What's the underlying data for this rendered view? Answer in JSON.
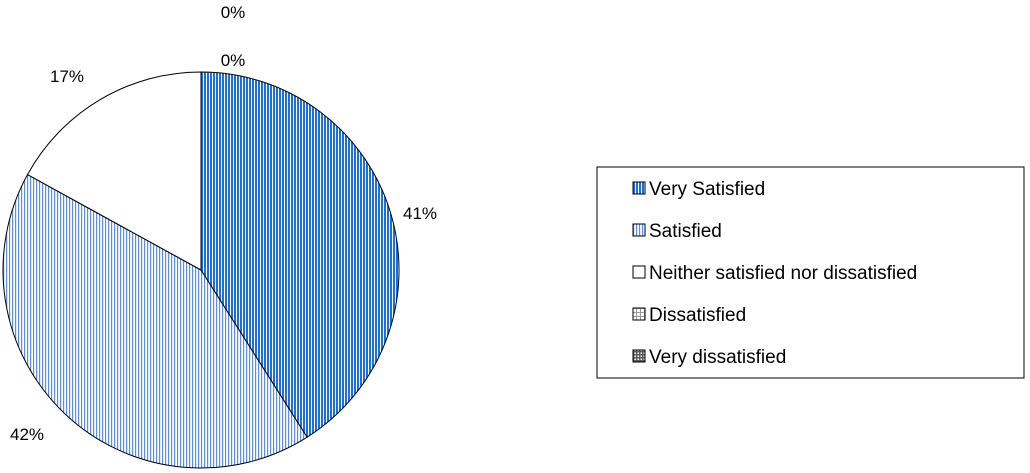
{
  "chart_data": {
    "type": "pie",
    "title": "",
    "start_angle_deg": 0,
    "direction": "clockwise",
    "legend_position": "right",
    "slices": [
      {
        "label": "Very Satisfied",
        "value": 41,
        "value_label": "41%",
        "color": "#1f6fd6",
        "pattern": "dense-vertical-lines"
      },
      {
        "label": "Satisfied",
        "value": 42,
        "value_label": "42%",
        "color": "#5d8fe0",
        "pattern": "vertical-lines"
      },
      {
        "label": "Neither satisfied nor dissatisfied",
        "value": 17,
        "value_label": "17%",
        "color": "#ffffff",
        "pattern": "none"
      },
      {
        "label": "Dissatisfied",
        "value": 0,
        "value_label": "0%",
        "color": "#9a9a9a",
        "pattern": "light-grid"
      },
      {
        "label": "Very dissatisfied",
        "value": 0,
        "value_label": "0%",
        "color": "#5a5a5a",
        "pattern": "dense-grid"
      }
    ]
  }
}
